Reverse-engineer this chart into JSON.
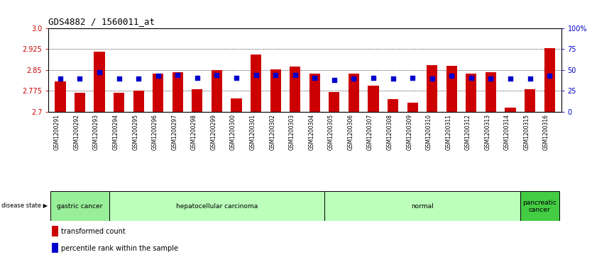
{
  "title": "GDS4882 / 1560011_at",
  "samples": [
    "GSM1200291",
    "GSM1200292",
    "GSM1200293",
    "GSM1200294",
    "GSM1200295",
    "GSM1200296",
    "GSM1200297",
    "GSM1200298",
    "GSM1200299",
    "GSM1200300",
    "GSM1200301",
    "GSM1200302",
    "GSM1200303",
    "GSM1200304",
    "GSM1200305",
    "GSM1200306",
    "GSM1200307",
    "GSM1200308",
    "GSM1200309",
    "GSM1200310",
    "GSM1200311",
    "GSM1200312",
    "GSM1200313",
    "GSM1200314",
    "GSM1200315",
    "GSM1200316"
  ],
  "bar_values": [
    2.808,
    2.768,
    2.916,
    2.768,
    2.775,
    2.836,
    2.842,
    2.782,
    2.85,
    2.748,
    2.907,
    2.853,
    2.862,
    2.836,
    2.772,
    2.836,
    2.795,
    2.745,
    2.734,
    2.868,
    2.866,
    2.836,
    2.843,
    2.716,
    2.78,
    2.928
  ],
  "percentile_values": [
    40,
    40,
    47,
    40,
    40,
    43,
    44,
    41,
    44,
    41,
    44,
    44,
    44,
    41,
    38,
    40,
    41,
    40,
    41,
    40,
    43,
    41,
    40,
    40,
    40,
    43
  ],
  "group_boundaries": [
    {
      "label": "gastric cancer",
      "start": 0,
      "end": 3,
      "color": "#99ee99"
    },
    {
      "label": "hepatocellular carcinoma",
      "start": 3,
      "end": 14,
      "color": "#bbffbb"
    },
    {
      "label": "normal",
      "start": 14,
      "end": 24,
      "color": "#bbffbb"
    },
    {
      "label": "pancreatic\ncancer",
      "start": 24,
      "end": 26,
      "color": "#44cc44"
    }
  ],
  "ymin": 2.7,
  "ymax": 3.0,
  "yticks_left": [
    2.7,
    2.775,
    2.85,
    2.925,
    3.0
  ],
  "yticks_right": [
    0,
    25,
    50,
    75,
    100
  ],
  "bar_color": "#cc0000",
  "dot_color": "#0000cc",
  "bar_width": 0.55,
  "bg_color": "#ffffff",
  "axis_color_left": "#cc0000",
  "axis_color_right": "#0000cc",
  "title_color": "#000000",
  "grid_ticks": [
    2.775,
    2.85,
    2.925
  ]
}
